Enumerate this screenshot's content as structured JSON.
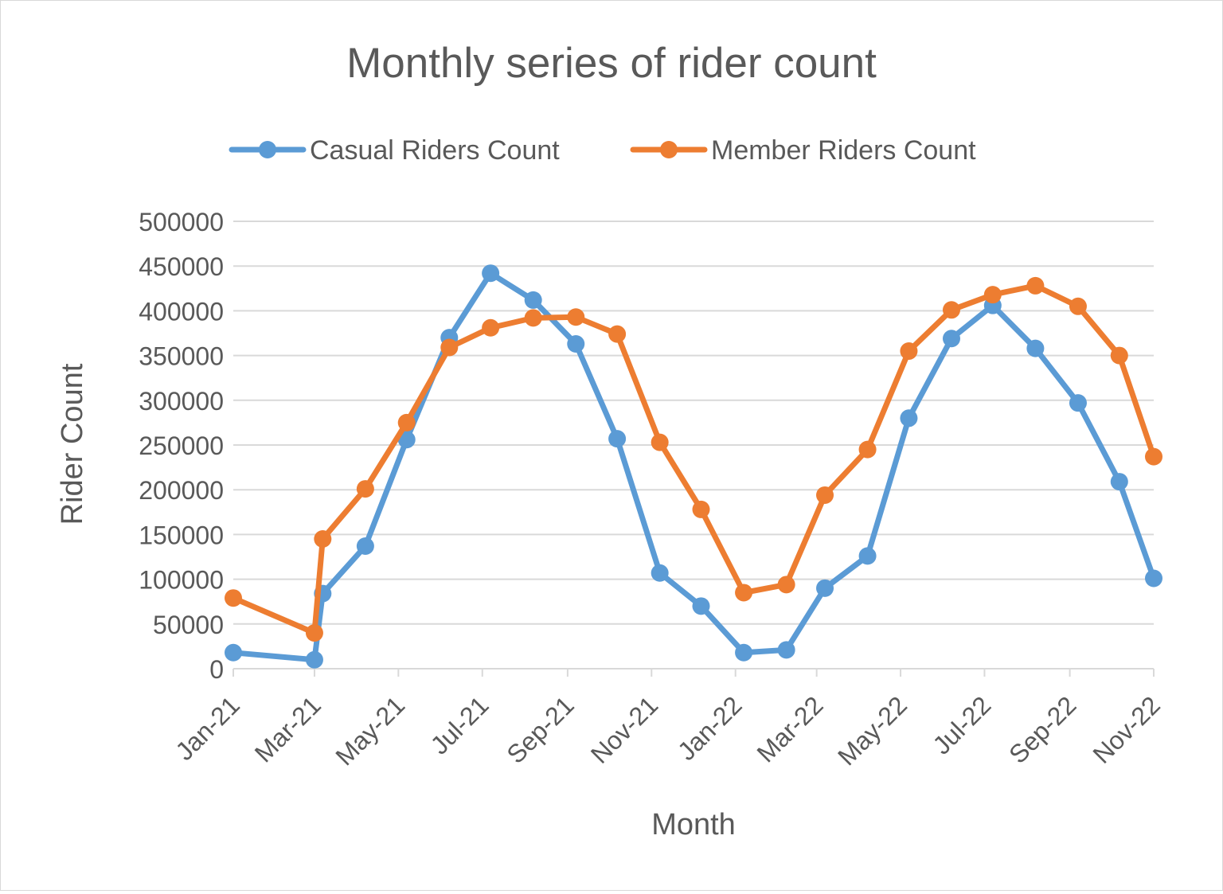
{
  "chart_data": {
    "type": "line",
    "title": "Monthly series of rider count",
    "xlabel": "Month",
    "ylabel": "Rider Count",
    "ylim": [
      0,
      500000
    ],
    "yticks": [
      0,
      50000,
      100000,
      150000,
      200000,
      250000,
      300000,
      350000,
      400000,
      450000,
      500000
    ],
    "ytick_labels": [
      "0",
      "50000",
      "100000",
      "150000",
      "200000",
      "250000",
      "300000",
      "350000",
      "400000",
      "450000",
      "500000"
    ],
    "xtick_labels": [
      "Jan-21",
      "Mar-21",
      "May-21",
      "Jul-21",
      "Sep-21",
      "Nov-21",
      "Jan-22",
      "Mar-22",
      "May-22",
      "Jul-22",
      "Sep-22",
      "Nov-22"
    ],
    "x_axis_type": "date",
    "x_range": [
      "2021-01-01",
      "2022-11-01"
    ],
    "grid": true,
    "legend_position": "top",
    "series": [
      {
        "name": "Casual Riders Count",
        "color": "#5b9bd5",
        "points": [
          {
            "x": "2021-01-01",
            "y": 18000
          },
          {
            "x": "2021-03-01",
            "y": 10000
          },
          {
            "x": "2021-03-07",
            "y": 84000
          },
          {
            "x": "2021-04-07",
            "y": 137000
          },
          {
            "x": "2021-05-07",
            "y": 256000
          },
          {
            "x": "2021-06-07",
            "y": 370000
          },
          {
            "x": "2021-07-07",
            "y": 442000
          },
          {
            "x": "2021-08-07",
            "y": 412000
          },
          {
            "x": "2021-09-07",
            "y": 363000
          },
          {
            "x": "2021-10-07",
            "y": 257000
          },
          {
            "x": "2021-11-07",
            "y": 107000
          },
          {
            "x": "2021-12-07",
            "y": 70000
          },
          {
            "x": "2022-01-07",
            "y": 18000
          },
          {
            "x": "2022-02-07",
            "y": 21000
          },
          {
            "x": "2022-03-07",
            "y": 90000
          },
          {
            "x": "2022-04-07",
            "y": 126000
          },
          {
            "x": "2022-05-07",
            "y": 280000
          },
          {
            "x": "2022-06-07",
            "y": 369000
          },
          {
            "x": "2022-07-07",
            "y": 406000
          },
          {
            "x": "2022-08-07",
            "y": 358000
          },
          {
            "x": "2022-09-07",
            "y": 297000
          },
          {
            "x": "2022-10-07",
            "y": 209000
          },
          {
            "x": "2022-11-01",
            "y": 101000
          }
        ]
      },
      {
        "name": "Member Riders Count",
        "color": "#ed7d31",
        "points": [
          {
            "x": "2021-01-01",
            "y": 79000
          },
          {
            "x": "2021-03-01",
            "y": 40000
          },
          {
            "x": "2021-03-07",
            "y": 145000
          },
          {
            "x": "2021-04-07",
            "y": 201000
          },
          {
            "x": "2021-05-07",
            "y": 275000
          },
          {
            "x": "2021-06-07",
            "y": 359000
          },
          {
            "x": "2021-07-07",
            "y": 381000
          },
          {
            "x": "2021-08-07",
            "y": 392000
          },
          {
            "x": "2021-09-07",
            "y": 393000
          },
          {
            "x": "2021-10-07",
            "y": 374000
          },
          {
            "x": "2021-11-07",
            "y": 253000
          },
          {
            "x": "2021-12-07",
            "y": 178000
          },
          {
            "x": "2022-01-07",
            "y": 85000
          },
          {
            "x": "2022-02-07",
            "y": 94000
          },
          {
            "x": "2022-03-07",
            "y": 194000
          },
          {
            "x": "2022-04-07",
            "y": 245000
          },
          {
            "x": "2022-05-07",
            "y": 355000
          },
          {
            "x": "2022-06-07",
            "y": 401000
          },
          {
            "x": "2022-07-07",
            "y": 418000
          },
          {
            "x": "2022-08-07",
            "y": 428000
          },
          {
            "x": "2022-09-07",
            "y": 405000
          },
          {
            "x": "2022-10-07",
            "y": 350000
          },
          {
            "x": "2022-11-01",
            "y": 237000
          }
        ]
      }
    ]
  }
}
